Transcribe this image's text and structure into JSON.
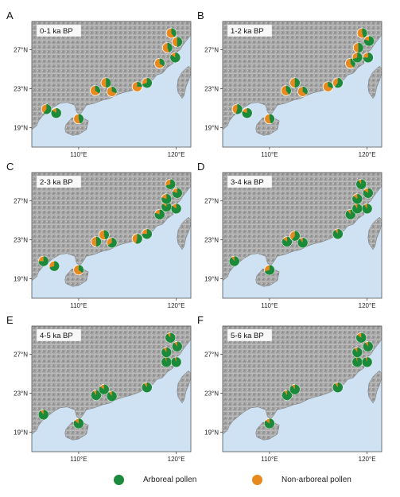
{
  "figure": {
    "panels": [
      {
        "letter": "A",
        "period": "0-1 ka BP",
        "sites": [
          {
            "lon": 106.7,
            "lat": 20.9,
            "arboreal": 0.6
          },
          {
            "lon": 107.7,
            "lat": 20.5,
            "arboreal": 0.85
          },
          {
            "lon": 110.0,
            "lat": 19.9,
            "arboreal": 0.45
          },
          {
            "lon": 111.7,
            "lat": 22.8,
            "arboreal": 0.35
          },
          {
            "lon": 112.8,
            "lat": 23.6,
            "arboreal": 0.5
          },
          {
            "lon": 113.4,
            "lat": 22.7,
            "arboreal": 0.3
          },
          {
            "lon": 116.0,
            "lat": 23.2,
            "arboreal": 0.25
          },
          {
            "lon": 117.0,
            "lat": 23.6,
            "arboreal": 0.7
          },
          {
            "lon": 118.3,
            "lat": 25.6,
            "arboreal": 0.35
          },
          {
            "lon": 119.1,
            "lat": 27.2,
            "arboreal": 0.45
          },
          {
            "lon": 119.5,
            "lat": 28.7,
            "arboreal": 0.4
          },
          {
            "lon": 119.9,
            "lat": 26.2,
            "arboreal": 0.85
          },
          {
            "lon": 120.1,
            "lat": 27.8,
            "arboreal": 0.5
          }
        ]
      },
      {
        "letter": "B",
        "period": "1-2 ka BP",
        "sites": [
          {
            "lon": 106.7,
            "lat": 20.9,
            "arboreal": 0.55
          },
          {
            "lon": 107.7,
            "lat": 20.5,
            "arboreal": 0.8
          },
          {
            "lon": 110.0,
            "lat": 19.9,
            "arboreal": 0.45
          },
          {
            "lon": 111.7,
            "lat": 22.8,
            "arboreal": 0.4
          },
          {
            "lon": 112.6,
            "lat": 23.6,
            "arboreal": 0.5
          },
          {
            "lon": 113.4,
            "lat": 22.7,
            "arboreal": 0.35
          },
          {
            "lon": 116.0,
            "lat": 23.2,
            "arboreal": 0.3
          },
          {
            "lon": 117.0,
            "lat": 23.6,
            "arboreal": 0.6
          },
          {
            "lon": 118.3,
            "lat": 25.6,
            "arboreal": 0.4
          },
          {
            "lon": 119.1,
            "lat": 27.2,
            "arboreal": 0.5
          },
          {
            "lon": 119.5,
            "lat": 28.7,
            "arboreal": 0.45
          },
          {
            "lon": 119.0,
            "lat": 26.2,
            "arboreal": 0.7
          },
          {
            "lon": 120.1,
            "lat": 26.2,
            "arboreal": 0.75
          },
          {
            "lon": 120.2,
            "lat": 27.9,
            "arboreal": 0.8
          }
        ]
      },
      {
        "letter": "C",
        "period": "2-3 ka BP",
        "sites": [
          {
            "lon": 106.4,
            "lat": 20.8,
            "arboreal": 0.75
          },
          {
            "lon": 107.5,
            "lat": 20.3,
            "arboreal": 0.7
          },
          {
            "lon": 110.0,
            "lat": 19.9,
            "arboreal": 0.35
          },
          {
            "lon": 111.8,
            "lat": 22.8,
            "arboreal": 0.5
          },
          {
            "lon": 112.6,
            "lat": 23.5,
            "arboreal": 0.45
          },
          {
            "lon": 113.4,
            "lat": 22.7,
            "arboreal": 0.65
          },
          {
            "lon": 116.0,
            "lat": 23.1,
            "arboreal": 0.55
          },
          {
            "lon": 117.0,
            "lat": 23.6,
            "arboreal": 0.75
          },
          {
            "lon": 118.3,
            "lat": 25.6,
            "arboreal": 0.8
          },
          {
            "lon": 119.0,
            "lat": 26.4,
            "arboreal": 0.85
          },
          {
            "lon": 119.0,
            "lat": 27.2,
            "arboreal": 0.8
          },
          {
            "lon": 119.4,
            "lat": 28.7,
            "arboreal": 0.7
          },
          {
            "lon": 120.0,
            "lat": 26.2,
            "arboreal": 0.85
          },
          {
            "lon": 120.1,
            "lat": 27.8,
            "arboreal": 0.8
          }
        ]
      },
      {
        "letter": "D",
        "period": "3-4 ka BP",
        "sites": [
          {
            "lon": 106.4,
            "lat": 20.8,
            "arboreal": 0.9
          },
          {
            "lon": 110.0,
            "lat": 19.9,
            "arboreal": 0.7
          },
          {
            "lon": 111.8,
            "lat": 22.8,
            "arboreal": 0.85
          },
          {
            "lon": 112.6,
            "lat": 23.4,
            "arboreal": 0.6
          },
          {
            "lon": 113.4,
            "lat": 22.7,
            "arboreal": 0.9
          },
          {
            "lon": 117.0,
            "lat": 23.6,
            "arboreal": 0.9
          },
          {
            "lon": 118.3,
            "lat": 25.6,
            "arboreal": 0.9
          },
          {
            "lon": 119.0,
            "lat": 26.2,
            "arboreal": 0.9
          },
          {
            "lon": 119.0,
            "lat": 27.2,
            "arboreal": 0.85
          },
          {
            "lon": 119.4,
            "lat": 28.7,
            "arboreal": 0.9
          },
          {
            "lon": 120.0,
            "lat": 26.2,
            "arboreal": 0.9
          },
          {
            "lon": 120.1,
            "lat": 27.8,
            "arboreal": 0.85
          }
        ]
      },
      {
        "letter": "E",
        "period": "4-5 ka BP",
        "sites": [
          {
            "lon": 106.4,
            "lat": 20.8,
            "arboreal": 0.9
          },
          {
            "lon": 110.0,
            "lat": 19.9,
            "arboreal": 0.85
          },
          {
            "lon": 111.8,
            "lat": 22.8,
            "arboreal": 0.9
          },
          {
            "lon": 112.6,
            "lat": 23.4,
            "arboreal": 0.85
          },
          {
            "lon": 113.4,
            "lat": 22.7,
            "arboreal": 0.9
          },
          {
            "lon": 117.0,
            "lat": 23.6,
            "arboreal": 0.9
          },
          {
            "lon": 119.0,
            "lat": 26.2,
            "arboreal": 0.95
          },
          {
            "lon": 119.0,
            "lat": 27.2,
            "arboreal": 0.9
          },
          {
            "lon": 119.4,
            "lat": 28.7,
            "arboreal": 0.9
          },
          {
            "lon": 120.0,
            "lat": 26.2,
            "arboreal": 0.95
          },
          {
            "lon": 120.1,
            "lat": 27.8,
            "arboreal": 0.9
          }
        ]
      },
      {
        "letter": "F",
        "period": "5-6 ka BP",
        "sites": [
          {
            "lon": 110.0,
            "lat": 19.9,
            "arboreal": 0.85
          },
          {
            "lon": 111.8,
            "lat": 22.8,
            "arboreal": 0.9
          },
          {
            "lon": 112.6,
            "lat": 23.4,
            "arboreal": 0.9
          },
          {
            "lon": 117.0,
            "lat": 23.6,
            "arboreal": 0.9
          },
          {
            "lon": 119.0,
            "lat": 26.2,
            "arboreal": 0.95
          },
          {
            "lon": 119.0,
            "lat": 27.2,
            "arboreal": 0.9
          },
          {
            "lon": 119.4,
            "lat": 28.7,
            "arboreal": 0.85
          },
          {
            "lon": 120.0,
            "lat": 26.2,
            "arboreal": 0.95
          },
          {
            "lon": 120.1,
            "lat": 27.8,
            "arboreal": 0.9
          }
        ]
      }
    ],
    "y_ticks": [
      "27°N",
      "23°N",
      "19°N"
    ],
    "x_ticks": [
      "110°E",
      "120°E"
    ],
    "colors": {
      "arboreal": "#1b8a3b",
      "non_arboreal": "#e8891e",
      "sea": "#cfe2f3",
      "land": "#a6a6a6"
    }
  },
  "legend": {
    "arboreal_label": "Arboreal pollen",
    "non_arboreal_label": "Non-arboreal pollen"
  }
}
